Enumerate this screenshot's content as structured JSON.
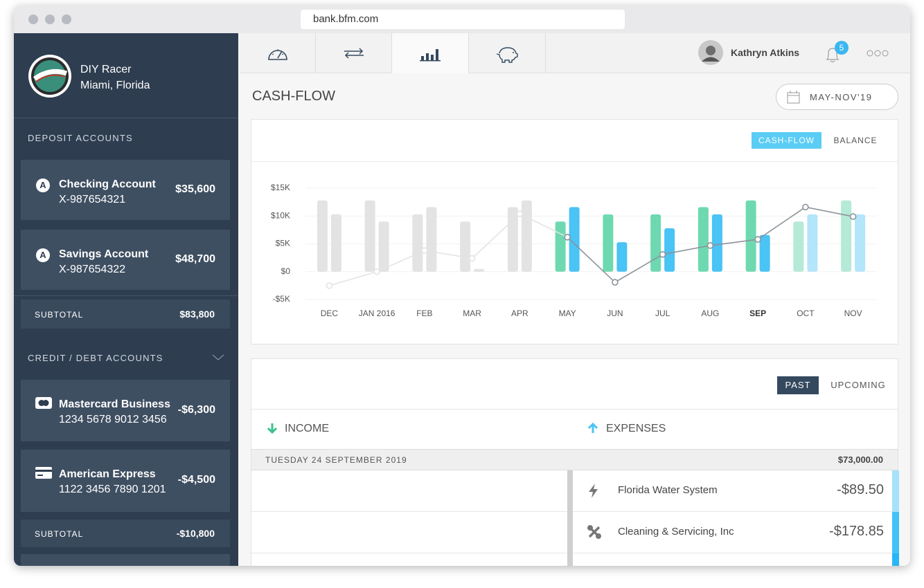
{
  "browser": {
    "url": "bank.bfm.com"
  },
  "sidebar": {
    "company": {
      "name": "DIY Racer",
      "location": "Miami, Florida"
    },
    "deposit": {
      "title": "DEPOSIT ACCOUNTS",
      "accounts": [
        {
          "badge": "A",
          "name": "Checking Account",
          "number": "X-987654321",
          "balance": "$35,600"
        },
        {
          "badge": "A",
          "name": "Savings Account",
          "number": "X-987654322",
          "balance": "$48,700"
        }
      ],
      "subtotal_label": "SUBTOTAL",
      "subtotal": "$83,800"
    },
    "credit": {
      "title": "CREDIT / DEBT ACCOUNTS",
      "accounts": [
        {
          "name": "Mastercard Business",
          "number": "1234 5678 9012 3456",
          "balance": "-$6,300"
        },
        {
          "name": "American Express",
          "number": "1122 3456 7890 1201",
          "balance": "-$4,500"
        }
      ],
      "subtotal_label": "SUBTOTAL",
      "subtotal": "-$10,800"
    }
  },
  "header": {
    "user": "Kathryn Atkins",
    "notifications": "5"
  },
  "page": {
    "title": "CASH-FLOW",
    "date_range": "MAY-NOV'19"
  },
  "chart_toggle": {
    "options": [
      "CASH-FLOW",
      "BALANCE"
    ],
    "active": 0
  },
  "chart_data": {
    "type": "bar",
    "categories": [
      "DEC",
      "JAN 2016",
      "FEB",
      "MAR",
      "APR",
      "MAY",
      "JUN",
      "JUL",
      "AUG",
      "SEP",
      "OCT",
      "NOV"
    ],
    "selected_index": 9,
    "series": [
      {
        "type": "bar",
        "values": [
          12800,
          12800,
          10300,
          9000,
          11600,
          9000,
          10300,
          10300,
          11600,
          12800,
          9000,
          12800
        ],
        "colors": [
          "#e3e3e3",
          "#e3e3e3",
          "#e3e3e3",
          "#e3e3e3",
          "#e3e3e3",
          "#6ed9b1",
          "#6ed9b1",
          "#6ed9b1",
          "#6ed9b1",
          "#6ed9b1",
          "#b5ead7",
          "#b5ead7"
        ]
      },
      {
        "type": "bar",
        "values": [
          10300,
          9000,
          11600,
          500,
          12800,
          11600,
          5300,
          7800,
          10300,
          6600,
          10300,
          10300
        ],
        "colors": [
          "#e3e3e3",
          "#e3e3e3",
          "#e3e3e3",
          "#e3e3e3",
          "#e3e3e3",
          "#4ac3f5",
          "#4ac3f5",
          "#4ac3f5",
          "#4ac3f5",
          "#4ac3f5",
          "#b3e5fb",
          "#b3e5fb"
        ]
      },
      {
        "type": "line",
        "values": [
          -2500,
          0,
          3800,
          2400,
          10400,
          6200,
          -1900,
          3100,
          4700,
          5800,
          11600,
          9900
        ],
        "colors": [
          "#e3e3e3",
          "#e3e3e3",
          "#e3e3e3",
          "#e3e3e3",
          "#e3e3e3",
          "#8c939b",
          "#8c939b",
          "#8c939b",
          "#8c939b",
          "#8c939b",
          "#8c939b",
          "#8c939b"
        ]
      }
    ],
    "ylim": [
      -5000,
      15000
    ],
    "yticks": [
      {
        "value": -5000,
        "label": "-$5K"
      },
      {
        "value": 0,
        "label": "$0"
      },
      {
        "value": 5000,
        "label": "$5K"
      },
      {
        "value": 10000,
        "label": "$10K"
      },
      {
        "value": 15000,
        "label": "$15K"
      }
    ],
    "grid": true
  },
  "transactions": {
    "tabs": [
      "PAST",
      "UPCOMING"
    ],
    "active_tab": 0,
    "columns": [
      "INCOME",
      "EXPENSES"
    ],
    "date": "TUESDAY 24 SEPTEMBER 2019",
    "total": "$73,000.00",
    "rows": [
      {
        "name": "Florida Water System",
        "amount": "-$89.50",
        "color": "#a6e2fb"
      },
      {
        "name": "Cleaning & Servicing, Inc",
        "amount": "-$178.85",
        "color": "#43c3f5"
      },
      {
        "color": "#29b6f6"
      }
    ]
  }
}
